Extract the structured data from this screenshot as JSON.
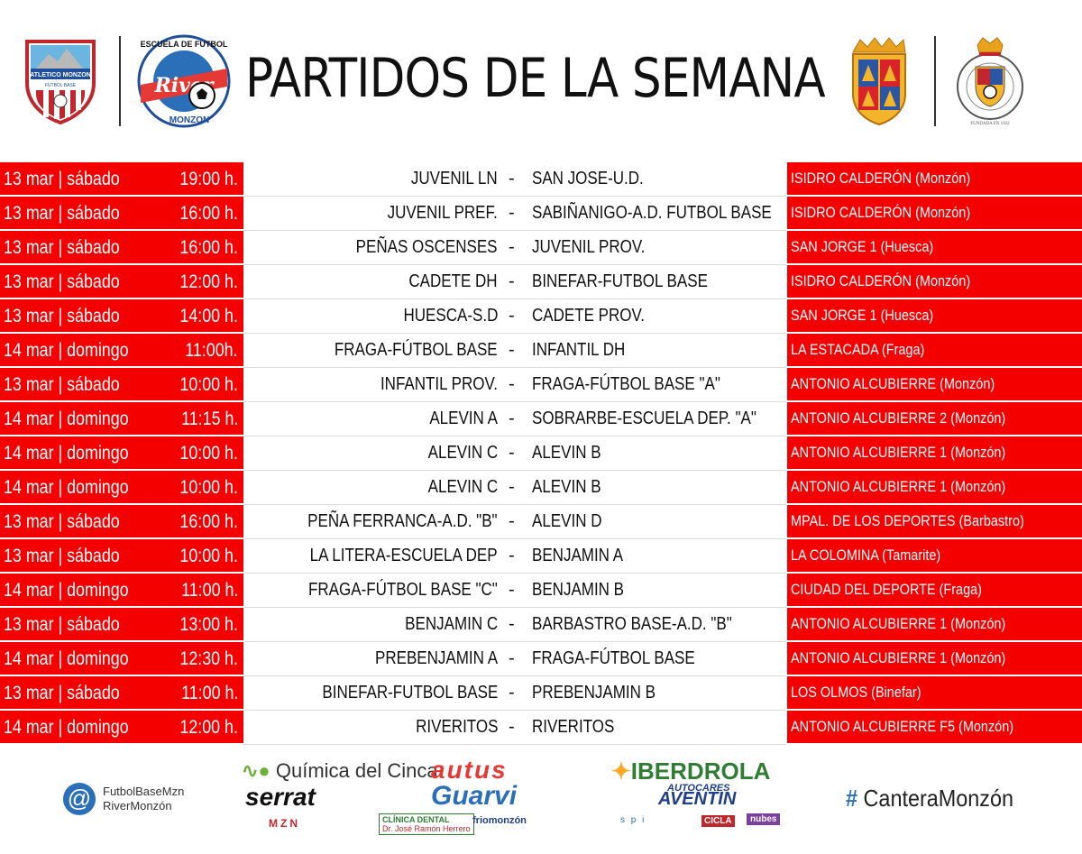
{
  "header": {
    "title": "PARTIDOS DE LA SEMANA",
    "logo_left_1_text": "ATLETICO MONZON",
    "logo_left_1_sub": "FUTBOL BASE",
    "logo_left_2_top": "ESCUELA DE FUTBOL",
    "logo_left_2_mid": "River",
    "logo_left_2_bottom": "MONZON",
    "logo_right_2_text": "FEDERACION ARAGONESA DE FUTBOL",
    "logo_right_2_sub": "FUNDADA EN 1922"
  },
  "matches": [
    {
      "date": "13 mar | sábado",
      "time": "19:00 h.",
      "home": "JUVENIL LN",
      "away": "SAN JOSE-U.D.",
      "venue": "ISIDRO CALDERÓN (Monzón)"
    },
    {
      "date": "13 mar | sábado",
      "time": "16:00 h.",
      "home": "JUVENIL PREF.",
      "away": "SABIÑANIGO-A.D. FUTBOL BASE",
      "venue": "ISIDRO CALDERÓN (Monzón)"
    },
    {
      "date": "13 mar | sábado",
      "time": "16:00 h.",
      "home": "PEÑAS OSCENSES",
      "away": "JUVENIL  PROV.",
      "venue": "SAN JORGE 1 (Huesca)"
    },
    {
      "date": "13 mar | sábado",
      "time": "12:00 h.",
      "home": "CADETE DH",
      "away": "BINEFAR-FUTBOL BASE",
      "venue": "ISIDRO CALDERÓN (Monzón)"
    },
    {
      "date": "13 mar | sábado",
      "time": "14:00 h.",
      "home": "HUESCA-S.D",
      "away": "CADETE PROV.",
      "venue": "SAN JORGE 1 (Huesca)"
    },
    {
      "date": "14 mar | domingo",
      "time": "11:00h.",
      "home": "FRAGA-FÚTBOL BASE",
      "away": "INFANTIL DH",
      "venue": "LA ESTACADA (Fraga)"
    },
    {
      "date": "13 mar | sábado",
      "time": "10:00 h.",
      "home": "INFANTIL PROV.",
      "away": "FRAGA-FÚTBOL BASE \"A\"",
      "venue": "ANTONIO ALCUBIERRE (Monzón)"
    },
    {
      "date": "14 mar | domingo",
      "time": "11:15 h.",
      "home": "ALEVIN A",
      "away": "SOBRARBE-ESCUELA DEP. \"A\"",
      "venue": "ANTONIO ALCUBIERRE 2 (Monzón)"
    },
    {
      "date": "14 mar | domingo",
      "time": "10:00 h.",
      "home": "ALEVIN C",
      "away": "ALEVIN B",
      "venue": "ANTONIO ALCUBIERRE 1 (Monzón)"
    },
    {
      "date": "14 mar | domingo",
      "time": "10:00 h.",
      "home": "ALEVIN C",
      "away": "ALEVIN B",
      "venue": "ANTONIO ALCUBIERRE 1 (Monzón)"
    },
    {
      "date": "13 mar | sábado",
      "time": "16:00 h.",
      "home": "PEÑA FERRANCA-A.D. \"B\"",
      "away": "ALEVIN D",
      "venue": "MPAL. DE LOS DEPORTES (Barbastro)"
    },
    {
      "date": "13 mar | sábado",
      "time": "10:00 h.",
      "home": "LA LITERA-ESCUELA DEP",
      "away": "BENJAMIN A",
      "venue": "LA COLOMINA (Tamarite)"
    },
    {
      "date": "14 mar | domingo",
      "time": "11:00 h.",
      "home": "FRAGA-FÚTBOL BASE \"C\"",
      "away": "BENJAMIN B",
      "venue": "CIUDAD DEL DEPORTE (Fraga)"
    },
    {
      "date": "13 mar | sábado",
      "time": "13:00 h.",
      "home": "BENJAMIN C",
      "away": "BARBASTRO BASE-A.D. \"B\"",
      "venue": "ANTONIO ALCUBIERRE 1 (Monzón)"
    },
    {
      "date": "14 mar | domingo",
      "time": "12:30 h.",
      "home": "PREBENJAMIN A",
      "away": "FRAGA-FÚTBOL BASE",
      "venue": "ANTONIO ALCUBIERRE 1 (Monzón)"
    },
    {
      "date": "13 mar | sábado",
      "time": "11:00 h.",
      "home": "BINEFAR-FUTBOL BASE",
      "away": "PREBENJAMIN B",
      "venue": "LOS OLMOS (Binefar)"
    },
    {
      "date": "14 mar | domingo",
      "time": "12:00 h.",
      "home": "RIVERITOS",
      "away": "RIVERITOS",
      "venue": "ANTONIO ALCUBIERRE F5 (Monzón)"
    }
  ],
  "separator": "-",
  "footer": {
    "social_icon": "@",
    "handle_1": "FutbolBaseMzn",
    "handle_2": "RiverMonzón",
    "hashtag_symbol": "#",
    "hashtag_text": "CanteraMonzón",
    "sponsors": {
      "quimica": "Química del Cinca",
      "autus": "autus",
      "iberdrola": "IBERDROLA",
      "serrat": "serrat",
      "guarvi": "Guarvi",
      "autocares": "AUTOCARES",
      "aventin": "AVENTIN",
      "mzn": "MZN",
      "clinica": "CLÍNICA DENTAL",
      "clinica_sub": "Dr. José Ramón Herrero",
      "friomonzon": "friomonzón",
      "spi": "s p i",
      "cicla": "CICLA",
      "nubes": "nubes"
    }
  },
  "colors": {
    "red": "#f40000",
    "blue": "#2a6fb8",
    "green": "#6fb03a"
  }
}
